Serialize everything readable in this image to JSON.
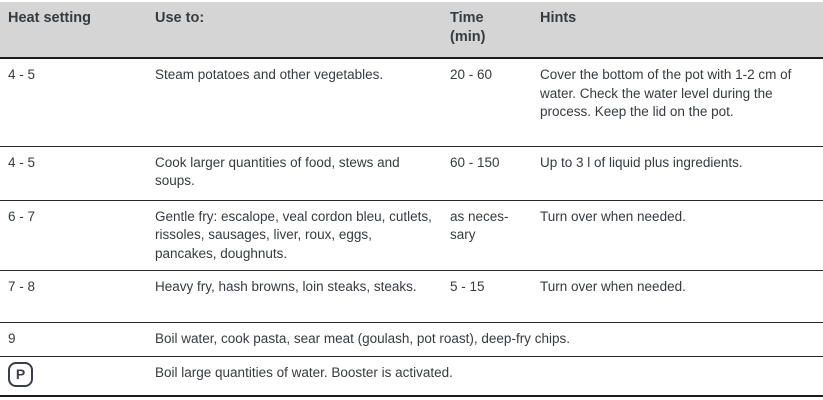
{
  "table": {
    "headers": {
      "heat": "Heat setting",
      "use": "Use to:",
      "time": "Time\n(min)",
      "hints": "Hints"
    },
    "rows": [
      {
        "heat": "4 - 5",
        "use": "Steam potatoes and other vegetables.",
        "time": "20 - 60",
        "hints": "Cover the bottom of the pot with 1-2 cm of water. Check the water level during the process. Keep the lid on the pot."
      },
      {
        "heat": "4 - 5",
        "use": "Cook larger quantities of food, stews and soups.",
        "time": "60 - 150",
        "hints": "Up to 3 l of liquid plus ingredients."
      },
      {
        "heat": "6 - 7",
        "use": "Gentle fry: escalope, veal cordon bleu, cutlets, rissoles, sausages, liver, roux, eggs, pancakes, doughnuts.",
        "time": "as neces-sary",
        "hints": "Turn over when needed."
      },
      {
        "heat": "7 - 8",
        "use": "Heavy fry, hash browns, loin steaks, steaks.",
        "time": "5 - 15",
        "hints": "Turn over when needed."
      },
      {
        "heat": "9",
        "span_text": "Boil water, cook pasta, sear meat (goulash, pot roast), deep-fry chips."
      },
      {
        "heat_icon": "P",
        "span_text": "Boil large quantities of water. Booster is activated."
      }
    ],
    "colors": {
      "header_background": "#d5d5d5",
      "text": "#363b42",
      "rule": "#1c1c1c"
    }
  }
}
